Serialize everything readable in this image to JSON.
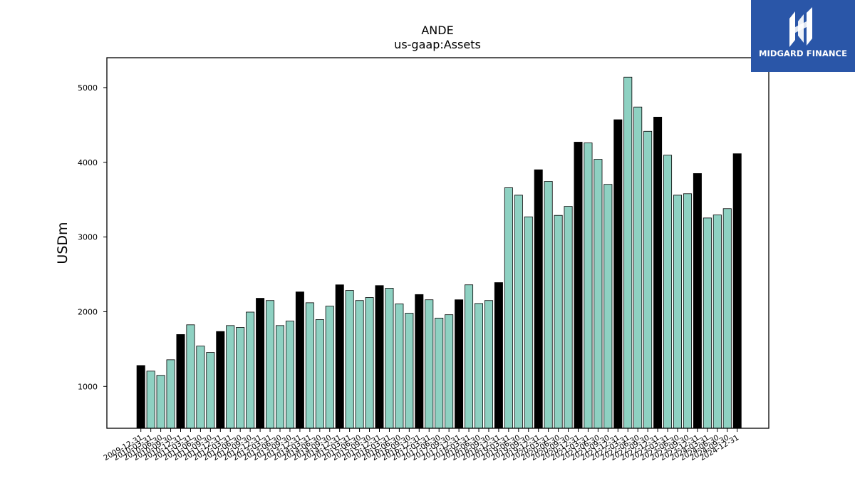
{
  "brand": {
    "name": "MIDGARD FINANCE",
    "logo_icon": "midgard-logo-icon",
    "background_color": "#2a56a8"
  },
  "chart_data": {
    "type": "bar",
    "title": "ANDE",
    "subtitle": "us-gaap:Assets",
    "xlabel": "",
    "ylabel": "USDm",
    "ylim": [
      440,
      5400
    ],
    "yticks": [
      1000,
      2000,
      3000,
      4000,
      5000
    ],
    "grid": false,
    "legend": "none",
    "colors": {
      "annual": "#000000",
      "quarterly": "#8ed1c2",
      "edge": "#000000"
    },
    "categories": [
      "2009-12-31",
      "2010-03-31",
      "2010-06-30",
      "2010-09-30",
      "2010-12-31",
      "2011-03-31",
      "2011-06-30",
      "2011-09-30",
      "2011-12-31",
      "2012-03-31",
      "2012-06-30",
      "2012-09-30",
      "2012-12-31",
      "2013-03-31",
      "2013-06-30",
      "2013-09-30",
      "2013-12-31",
      "2014-03-31",
      "2014-06-30",
      "2014-09-30",
      "2014-12-31",
      "2015-03-31",
      "2015-06-30",
      "2015-09-30",
      "2015-12-31",
      "2016-03-31",
      "2016-06-30",
      "2016-09-30",
      "2016-12-31",
      "2017-03-31",
      "2017-06-30",
      "2017-09-30",
      "2017-12-31",
      "2018-03-31",
      "2018-06-30",
      "2018-09-30",
      "2018-12-31",
      "2019-03-31",
      "2019-06-30",
      "2019-09-30",
      "2019-12-31",
      "2020-03-31",
      "2020-06-30",
      "2020-09-30",
      "2020-12-31",
      "2021-03-31",
      "2021-06-30",
      "2021-09-30",
      "2021-12-31",
      "2022-03-31",
      "2022-06-30",
      "2022-09-30",
      "2022-12-31",
      "2023-03-31",
      "2023-06-30",
      "2023-09-30",
      "2023-12-31",
      "2024-03-31",
      "2024-06-30",
      "2024-09-30",
      "2024-12-31"
    ],
    "values": [
      1280,
      1205,
      1148,
      1357,
      1695,
      1825,
      1540,
      1455,
      1735,
      1815,
      1790,
      1995,
      2180,
      2150,
      1815,
      1875,
      2265,
      2120,
      1895,
      2075,
      2360,
      2285,
      2150,
      2190,
      2350,
      2315,
      2105,
      1980,
      2230,
      2160,
      1915,
      1960,
      2160,
      2360,
      2110,
      2150,
      2390,
      3660,
      3560,
      3270,
      3900,
      3745,
      3290,
      3410,
      4270,
      4260,
      4040,
      3705,
      4570,
      5140,
      4740,
      4415,
      4605,
      4095,
      3560,
      3580,
      3850,
      3255,
      3295,
      3380,
      4115
    ]
  }
}
